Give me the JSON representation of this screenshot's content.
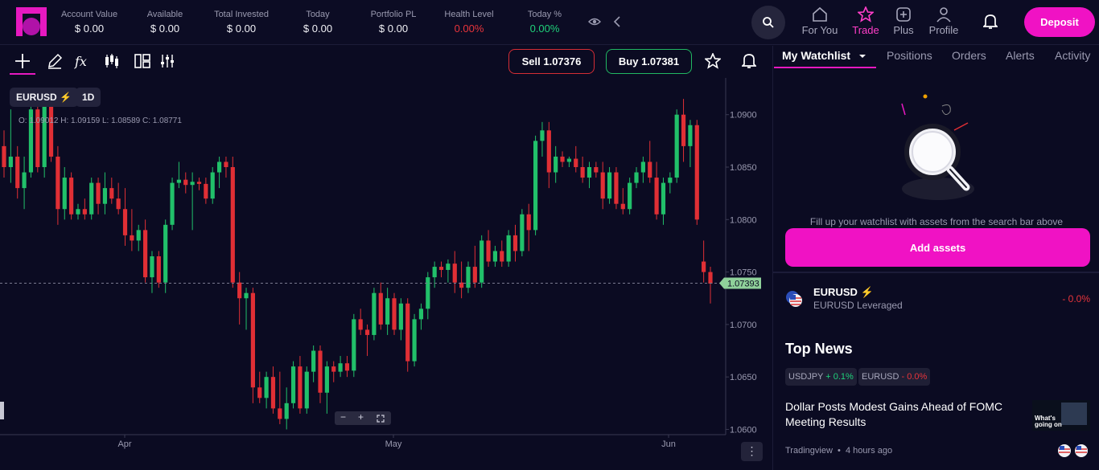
{
  "header": {
    "stats": [
      {
        "label": "Account Value",
        "value": "$ 0.00",
        "color": "default"
      },
      {
        "label": "Available",
        "value": "$ 0.00",
        "color": "default"
      },
      {
        "label": "Total Invested",
        "value": "$ 0.00",
        "color": "default"
      },
      {
        "label": "Today",
        "value": "$ 0.00",
        "color": "default"
      },
      {
        "label": "Portfolio PL",
        "value": "$ 0.00",
        "color": "default"
      },
      {
        "label": "Health Level",
        "value": "0.00%",
        "color": "red"
      },
      {
        "label": "Today %",
        "value": "0.00%",
        "color": "green"
      }
    ],
    "nav": [
      {
        "label": "For You",
        "icon": "home-icon",
        "active": false
      },
      {
        "label": "Trade",
        "icon": "star-icon",
        "active": true
      },
      {
        "label": "Plus",
        "icon": "plus-icon",
        "active": false
      },
      {
        "label": "Profile",
        "icon": "user-icon",
        "active": false
      }
    ],
    "deposit_label": "Deposit",
    "accent": "#f012c4"
  },
  "chart_toolbar": {
    "sell_label": "Sell 1.07376",
    "buy_label": "Buy 1.07381",
    "symbol": "EURUSD",
    "timeframe": "1D",
    "ohlc": "O: 1.09012 H: 1.09159 L: 1.08589 C: 1.08771",
    "zoom_minus": "−",
    "zoom_plus": "+",
    "more": "⋮"
  },
  "chart_data": {
    "type": "candlestick",
    "symbol": "EURUSD",
    "x_tick_labels": [
      "Apr",
      "May",
      "Jun"
    ],
    "y_tick_labels": [
      "1.0900",
      "1.0850",
      "1.0800",
      "1.0750",
      "1.0700",
      "1.0650",
      "1.0600"
    ],
    "ylim": [
      1.0595,
      1.0935
    ],
    "current_price": 1.07393,
    "current_price_label": "1.07393",
    "colors": {
      "up": "#21c06a",
      "down": "#e02f35"
    },
    "candles": [
      [
        1.087,
        1.0885,
        1.084,
        1.085
      ],
      [
        1.085,
        1.0905,
        1.0835,
        1.086
      ],
      [
        1.086,
        1.087,
        1.082,
        1.083
      ],
      [
        1.083,
        1.086,
        1.081,
        1.0845
      ],
      [
        1.0845,
        1.0915,
        1.084,
        1.0905
      ],
      [
        1.0905,
        1.092,
        1.0845,
        1.085
      ],
      [
        1.085,
        1.092,
        1.084,
        1.0915
      ],
      [
        1.0915,
        1.092,
        1.0855,
        1.086
      ],
      [
        1.086,
        1.087,
        1.0795,
        1.081
      ],
      [
        1.081,
        1.085,
        1.08,
        1.084
      ],
      [
        1.084,
        1.0845,
        1.08,
        1.0805
      ],
      [
        1.0805,
        1.0815,
        1.08,
        1.081
      ],
      [
        1.081,
        1.082,
        1.08,
        1.0805
      ],
      [
        1.0805,
        1.084,
        1.08,
        1.0835
      ],
      [
        1.0835,
        1.084,
        1.0805,
        1.0815
      ],
      [
        1.0815,
        1.0845,
        1.0805,
        1.083
      ],
      [
        1.083,
        1.084,
        1.0815,
        1.082
      ],
      [
        1.082,
        1.0835,
        1.0805,
        1.081
      ],
      [
        1.081,
        1.083,
        1.0775,
        1.0785
      ],
      [
        1.0785,
        1.081,
        1.077,
        1.078
      ],
      [
        1.078,
        1.0795,
        1.077,
        1.079
      ],
      [
        1.079,
        1.08,
        1.074,
        1.0745
      ],
      [
        1.0745,
        1.077,
        1.073,
        1.0765
      ],
      [
        1.0765,
        1.077,
        1.0735,
        1.074
      ],
      [
        1.074,
        1.08,
        1.073,
        1.0795
      ],
      [
        1.0795,
        1.084,
        1.079,
        1.0835
      ],
      [
        1.0835,
        1.0855,
        1.083,
        1.0838
      ],
      [
        1.0838,
        1.0845,
        1.0825,
        1.0833
      ],
      [
        1.0833,
        1.0845,
        1.079,
        1.0836
      ],
      [
        1.0836,
        1.084,
        1.0828,
        1.0834
      ],
      [
        1.0834,
        1.084,
        1.0815,
        1.082
      ],
      [
        1.082,
        1.085,
        1.0815,
        1.0845
      ],
      [
        1.0845,
        1.086,
        1.083,
        1.0855
      ],
      [
        1.0855,
        1.086,
        1.084,
        1.085
      ],
      [
        1.085,
        1.086,
        1.0735,
        1.074
      ],
      [
        1.074,
        1.075,
        1.07,
        1.0725
      ],
      [
        1.0725,
        1.0735,
        1.0695,
        1.073
      ],
      [
        1.073,
        1.0735,
        1.0625,
        1.064
      ],
      [
        1.064,
        1.0655,
        1.0625,
        1.063
      ],
      [
        1.063,
        1.0655,
        1.062,
        1.065
      ],
      [
        1.065,
        1.066,
        1.0615,
        1.062
      ],
      [
        1.062,
        1.0655,
        1.0605,
        1.061
      ],
      [
        1.061,
        1.064,
        1.06,
        1.0625
      ],
      [
        1.0625,
        1.0665,
        1.062,
        1.066
      ],
      [
        1.066,
        1.067,
        1.0615,
        1.062
      ],
      [
        1.062,
        1.066,
        1.0615,
        1.0655
      ],
      [
        1.0655,
        1.068,
        1.0645,
        1.0675
      ],
      [
        1.0675,
        1.068,
        1.0625,
        1.0635
      ],
      [
        1.0635,
        1.0665,
        1.0615,
        1.066
      ],
      [
        1.066,
        1.0665,
        1.0645,
        1.0655
      ],
      [
        1.0655,
        1.067,
        1.065,
        1.0663
      ],
      [
        1.0663,
        1.067,
        1.065,
        1.0656
      ],
      [
        1.0656,
        1.071,
        1.065,
        1.0705
      ],
      [
        1.0705,
        1.0715,
        1.069,
        1.0695
      ],
      [
        1.0695,
        1.07,
        1.067,
        1.069
      ],
      [
        1.069,
        1.0735,
        1.0685,
        1.073
      ],
      [
        1.073,
        1.074,
        1.0695,
        1.07
      ],
      [
        1.07,
        1.0735,
        1.069,
        1.0725
      ],
      [
        1.0725,
        1.073,
        1.069,
        1.0695
      ],
      [
        1.0695,
        1.0725,
        1.0685,
        1.072
      ],
      [
        1.072,
        1.0725,
        1.0655,
        1.0665
      ],
      [
        1.0665,
        1.071,
        1.066,
        1.0705
      ],
      [
        1.0705,
        1.072,
        1.0695,
        1.0715
      ],
      [
        1.0715,
        1.075,
        1.0705,
        1.0745
      ],
      [
        1.0745,
        1.076,
        1.0735,
        1.0755
      ],
      [
        1.0755,
        1.076,
        1.0745,
        1.0752
      ],
      [
        1.0752,
        1.0762,
        1.074,
        1.0758
      ],
      [
        1.0758,
        1.077,
        1.073,
        1.074
      ],
      [
        1.074,
        1.076,
        1.0725,
        1.0735
      ],
      [
        1.0735,
        1.076,
        1.073,
        1.0755
      ],
      [
        1.0755,
        1.0775,
        1.0735,
        1.074
      ],
      [
        1.074,
        1.0785,
        1.0735,
        1.078
      ],
      [
        1.078,
        1.079,
        1.0755,
        1.076
      ],
      [
        1.076,
        1.0775,
        1.0755,
        1.077
      ],
      [
        1.077,
        1.078,
        1.0755,
        1.076
      ],
      [
        1.076,
        1.079,
        1.0755,
        1.0785
      ],
      [
        1.0785,
        1.0795,
        1.076,
        1.077
      ],
      [
        1.077,
        1.081,
        1.0765,
        1.0805
      ],
      [
        1.0805,
        1.0815,
        1.077,
        1.079
      ],
      [
        1.079,
        1.088,
        1.0785,
        1.0875
      ],
      [
        1.0875,
        1.0893,
        1.086,
        1.0885
      ],
      [
        1.0885,
        1.0893,
        1.083,
        1.0845
      ],
      [
        1.0845,
        1.087,
        1.0835,
        1.086
      ],
      [
        1.086,
        1.0865,
        1.085,
        1.0855
      ],
      [
        1.0855,
        1.086,
        1.085,
        1.0858
      ],
      [
        1.0858,
        1.087,
        1.0845,
        1.085
      ],
      [
        1.085,
        1.086,
        1.0835,
        1.084
      ],
      [
        1.084,
        1.0855,
        1.083,
        1.085
      ],
      [
        1.085,
        1.0855,
        1.084,
        1.0845
      ],
      [
        1.0845,
        1.0855,
        1.081,
        1.082
      ],
      [
        1.082,
        1.085,
        1.0815,
        1.0845
      ],
      [
        1.0845,
        1.085,
        1.081,
        1.0815
      ],
      [
        1.0815,
        1.083,
        1.0805,
        1.081
      ],
      [
        1.081,
        1.084,
        1.0805,
        1.0835
      ],
      [
        1.0835,
        1.085,
        1.083,
        1.0845
      ],
      [
        1.0845,
        1.086,
        1.0835,
        1.0855
      ],
      [
        1.0855,
        1.0875,
        1.0835,
        1.084
      ],
      [
        1.084,
        1.0855,
        1.08,
        1.0805
      ],
      [
        1.0805,
        1.084,
        1.0795,
        1.0835
      ],
      [
        1.0835,
        1.0845,
        1.0825,
        1.084
      ],
      [
        1.084,
        1.0905,
        1.0835,
        1.09
      ],
      [
        1.09,
        1.0915,
        1.0855,
        1.087
      ],
      [
        1.087,
        1.0895,
        1.085,
        1.089
      ],
      [
        1.089,
        1.0895,
        1.0795,
        1.08
      ],
      [
        1.076,
        1.078,
        1.074,
        1.075
      ],
      [
        1.075,
        1.0755,
        1.072,
        1.0739
      ]
    ]
  },
  "panel": {
    "tabs": [
      "My Watchlist",
      "Positions",
      "Orders",
      "Alerts",
      "Activity"
    ],
    "empty_message": "Fill up your watchlist with assets from the search bar above",
    "add_assets_label": "Add assets",
    "asset": {
      "name": "EURUSD",
      "subtitle": "EURUSD Leveraged",
      "change": "- 0.0%"
    },
    "news_title": "Top News",
    "chips": [
      {
        "symbol": "USDJPY",
        "change": "+ 0.1%",
        "dir": "up"
      },
      {
        "symbol": "EURUSD",
        "change": "- 0.0%",
        "dir": "down"
      }
    ],
    "headline": "Dollar Posts Modest Gains Ahead of FOMC Meeting Results",
    "source": "Tradingview",
    "time": "4 hours ago",
    "thumb_label_1": "What's",
    "thumb_label_2": "going on"
  }
}
